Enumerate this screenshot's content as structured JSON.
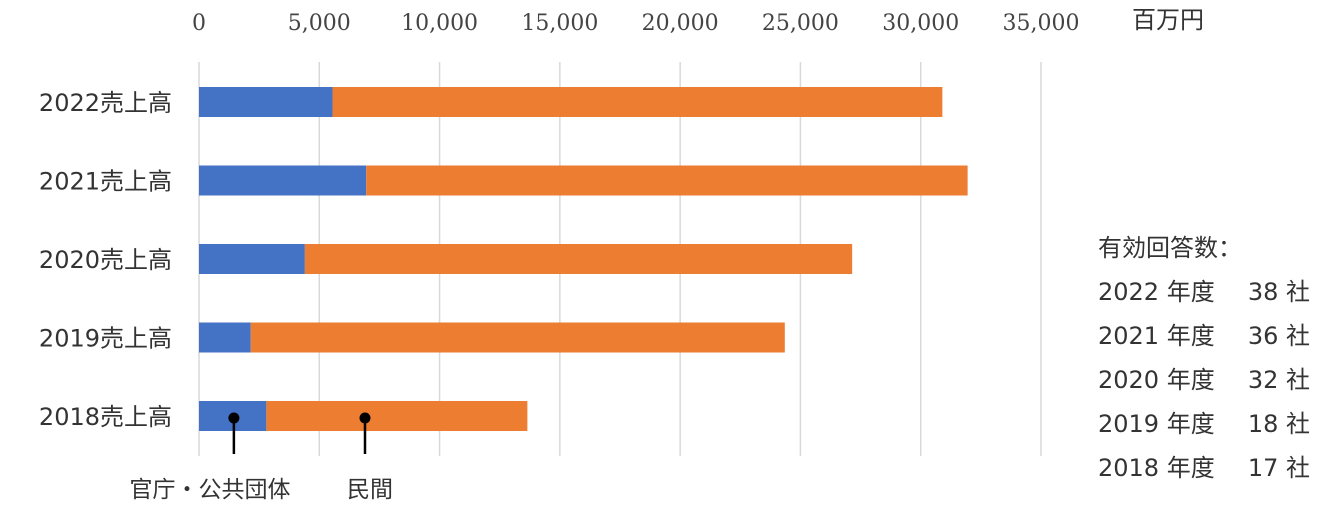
{
  "chart_data": {
    "type": "bar",
    "orientation": "horizontal",
    "stacked": true,
    "unit": "百万円",
    "categories": [
      "2022売上高",
      "2021売上高",
      "2020売上高",
      "2019売上高",
      "2018売上高"
    ],
    "series": [
      {
        "name": "官庁・公共団体",
        "color": "#4472C4",
        "values": [
          5550,
          6950,
          4400,
          2150,
          2800
        ]
      },
      {
        "name": "民間",
        "color": "#ED7D31",
        "values": [
          25350,
          25000,
          22750,
          22200,
          10850
        ]
      }
    ],
    "xlim": [
      0,
      35000
    ],
    "xticks": [
      0,
      5000,
      10000,
      15000,
      20000,
      25000,
      30000,
      35000
    ],
    "xtick_labels": [
      "0",
      "5,000",
      "10,000",
      "15,000",
      "20,000",
      "25,000",
      "30,000",
      "35,000"
    ],
    "grid": true,
    "legend_placement": "bottom (callout pins on 2018 bar)"
  },
  "notes": {
    "title": "有効回答数：",
    "rows": [
      {
        "year": "2022 年度",
        "count": "38 社"
      },
      {
        "year": "2021 年度",
        "count": "36 社"
      },
      {
        "year": "2020 年度",
        "count": "32 社"
      },
      {
        "year": "2019 年度",
        "count": "18 社"
      },
      {
        "year": "2018 年度",
        "count": "17 社"
      }
    ]
  }
}
